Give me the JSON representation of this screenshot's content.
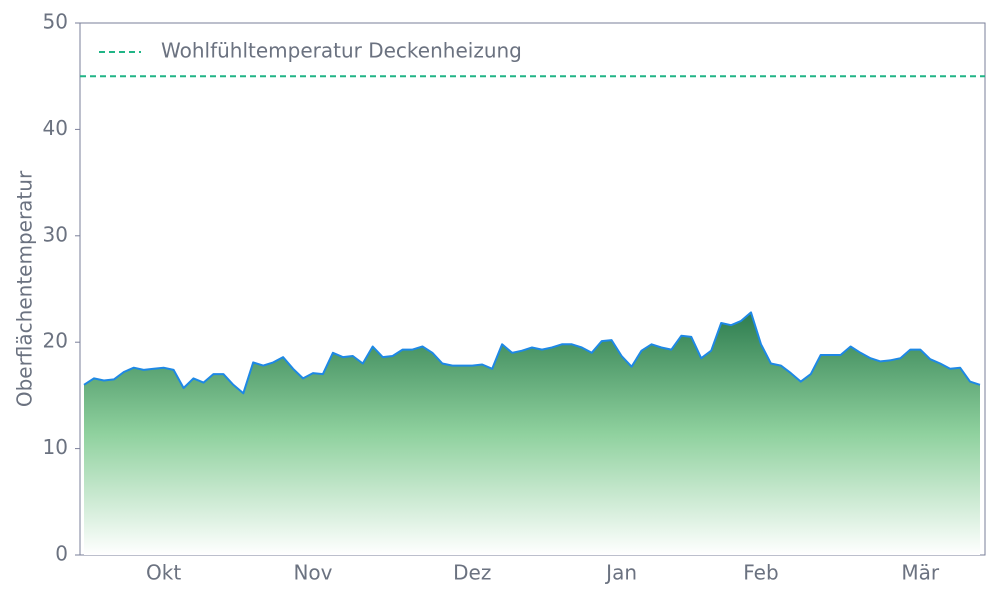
{
  "chart_data": {
    "type": "area",
    "ylabel": "Oberflächentemperatur",
    "categories": [
      null,
      null,
      null,
      null,
      null,
      null,
      null,
      null,
      "Okt",
      null,
      null,
      null,
      null,
      null,
      null,
      null,
      null,
      null,
      null,
      null,
      null,
      null,
      null,
      "Nov",
      null,
      null,
      null,
      null,
      null,
      null,
      null,
      null,
      null,
      null,
      null,
      null,
      null,
      null,
      null,
      "Dez",
      null,
      null,
      null,
      null,
      null,
      null,
      null,
      null,
      null,
      null,
      null,
      null,
      null,
      null,
      "Jan",
      null,
      null,
      null,
      null,
      null,
      null,
      null,
      null,
      null,
      null,
      null,
      null,
      null,
      "Feb",
      null,
      null,
      null,
      null,
      null,
      null,
      null,
      null,
      null,
      null,
      null,
      null,
      null,
      null,
      null,
      "Mär",
      null,
      null,
      null,
      null,
      null,
      null
    ],
    "values": [
      16.0,
      16.6,
      16.4,
      16.5,
      17.2,
      17.6,
      17.4,
      17.5,
      17.6,
      17.4,
      15.7,
      16.6,
      16.2,
      17.0,
      17.0,
      16.0,
      15.2,
      18.1,
      17.8,
      18.1,
      18.6,
      17.5,
      16.6,
      17.1,
      17.0,
      19.0,
      18.6,
      18.7,
      18.0,
      19.6,
      18.6,
      18.7,
      19.3,
      19.3,
      19.6,
      19.0,
      18.0,
      17.8,
      17.8,
      17.8,
      17.9,
      17.5,
      19.8,
      19.0,
      19.2,
      19.5,
      19.3,
      19.5,
      19.8,
      19.8,
      19.5,
      19.0,
      20.1,
      20.2,
      18.7,
      17.7,
      19.2,
      19.8,
      19.5,
      19.3,
      20.6,
      20.5,
      18.5,
      19.2,
      21.8,
      21.6,
      22.0,
      22.8,
      19.8,
      18.0,
      17.8,
      17.1,
      16.3,
      17.0,
      18.8,
      18.8,
      18.8,
      19.6,
      19.0,
      18.5,
      18.2,
      18.3,
      18.5,
      19.3,
      19.3,
      18.4,
      18.0,
      17.5,
      17.6,
      16.3,
      16.0
    ],
    "color": "#1e88e5",
    "fill_color": "#2e7d4f",
    "reference_lines": [
      {
        "name": "Wohlfühltemperatur Deckenheizung",
        "value": 45,
        "color": "#20b486",
        "style": "dashed"
      }
    ],
    "legend": "upper left",
    "ylim": [
      0,
      50
    ],
    "yticks": [
      0,
      10,
      20,
      30,
      40,
      50
    ]
  }
}
